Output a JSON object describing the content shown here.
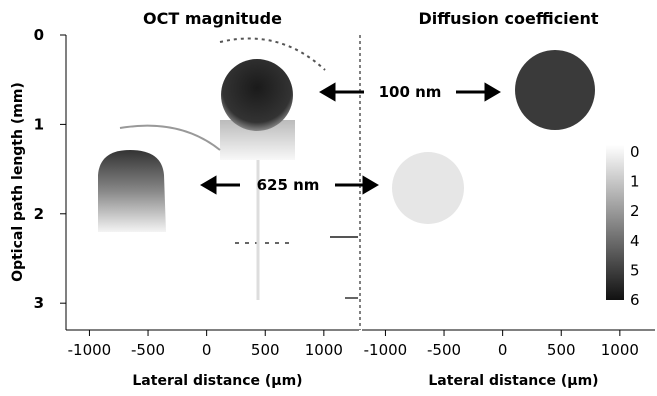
{
  "chart_data": [
    {
      "type": "image",
      "title": "OCT magnitude",
      "xlabel": "Lateral distance (μm)",
      "ylabel": "Optical path length (mm)",
      "xlim": [
        -1200,
        1300
      ],
      "xticks": [
        -1000,
        -500,
        0,
        500,
        1000
      ],
      "ylim": [
        0,
        3.3
      ],
      "yticks": [
        0,
        1,
        2,
        3
      ]
    },
    {
      "type": "image",
      "title": "Diffusion coefficient",
      "xlabel": "Lateral distance (μm)",
      "xlim": [
        -1200,
        1300
      ],
      "xticks": [
        -1000,
        -500,
        0,
        500,
        1000
      ],
      "ylim": [
        0,
        3.3
      ],
      "colorbar_ticks": [
        0,
        1,
        2,
        4,
        5,
        6
      ]
    }
  ],
  "annotations": [
    "100 nm",
    "625 nm"
  ]
}
